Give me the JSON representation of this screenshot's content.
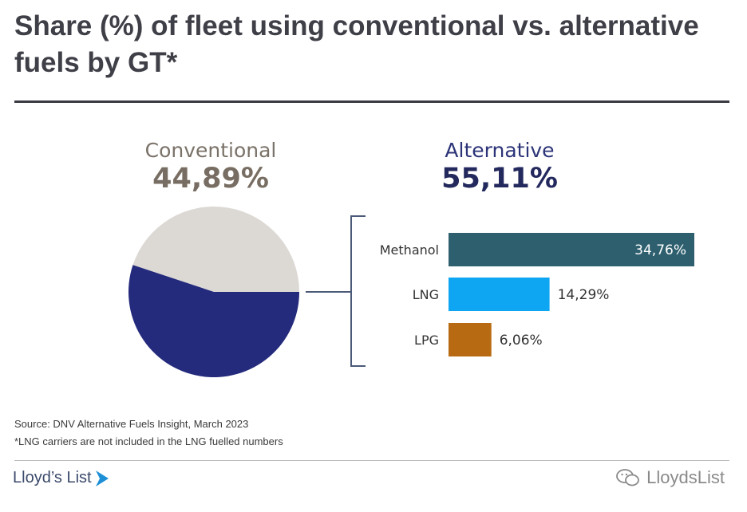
{
  "title": "Share (%) of fleet using conventional vs. alternative fuels by GT*",
  "source": "Source: DNV Alternative Fuels Insight, March 2023",
  "footnote": "*LNG carriers are not included in the LNG fuelled numbers",
  "brand": "Lloyd’s List",
  "watermark": "LloydsList",
  "colors": {
    "conventional": "#dcd9d5",
    "alternative": "#242a7c",
    "methanol": "#2e5f6e",
    "lng": "#0ea5f2",
    "lpg": "#b86a12",
    "bracket": "#4b5a78"
  },
  "chart_data": [
    {
      "type": "pie",
      "title": "",
      "slices": [
        {
          "label": "Conventional",
          "value": 44.89,
          "value_label": "44,89%"
        },
        {
          "label": "Alternative",
          "value": 55.11,
          "value_label": "55,11%"
        }
      ]
    },
    {
      "type": "bar",
      "orientation": "horizontal",
      "title": "",
      "categories": [
        "Methanol",
        "LNG",
        "LPG"
      ],
      "values": [
        34.76,
        14.29,
        6.06
      ],
      "value_labels": [
        "34,76%",
        "14,29%",
        "6,06%"
      ],
      "xlim": [
        0,
        34.76
      ]
    }
  ]
}
